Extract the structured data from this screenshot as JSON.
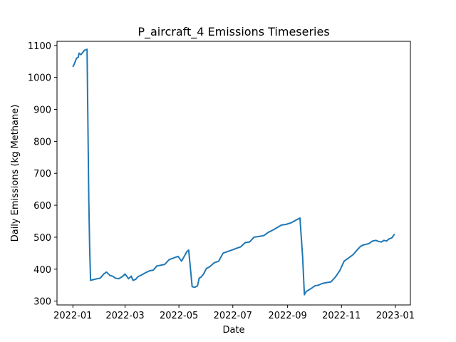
{
  "chart_data": {
    "type": "line",
    "title": "P_aircraft_4 Emissions Timeseries",
    "xlabel": "Date",
    "ylabel": "Daily Emissions (kg Methane)",
    "xlim": [
      "2021-12-14",
      "2023-01-18"
    ],
    "ylim": [
      288,
      1113
    ],
    "x_ticks": [
      "2022-01",
      "2022-03",
      "2022-05",
      "2022-07",
      "2022-09",
      "2022-11",
      "2023-01"
    ],
    "y_ticks": [
      300,
      400,
      500,
      600,
      700,
      800,
      900,
      1000,
      1100
    ],
    "grid": false,
    "line_color": "#1f77b4",
    "series": [
      {
        "x": [
          "2022-01-01",
          "2022-01-03",
          "2022-01-05",
          "2022-01-07",
          "2022-01-08",
          "2022-01-10",
          "2022-01-12",
          "2022-01-14",
          "2022-01-16",
          "2022-01-17",
          "2022-01-19",
          "2022-01-20",
          "2022-01-21",
          "2022-01-25",
          "2022-02-01",
          "2022-02-05",
          "2022-02-08",
          "2022-02-12",
          "2022-02-15",
          "2022-02-18",
          "2022-02-22",
          "2022-02-26",
          "2022-03-01",
          "2022-03-05",
          "2022-03-08",
          "2022-03-10",
          "2022-03-13",
          "2022-03-16",
          "2022-03-20",
          "2022-03-25",
          "2022-03-29",
          "2022-04-02",
          "2022-04-06",
          "2022-04-10",
          "2022-04-15",
          "2022-04-20",
          "2022-04-25",
          "2022-04-30",
          "2022-05-04",
          "2022-05-08",
          "2022-05-10",
          "2022-05-12",
          "2022-05-16",
          "2022-05-19",
          "2022-05-22",
          "2022-05-24",
          "2022-05-26",
          "2022-05-29",
          "2022-06-01",
          "2022-06-05",
          "2022-06-10",
          "2022-06-15",
          "2022-06-20",
          "2022-06-25",
          "2022-06-30",
          "2022-07-05",
          "2022-07-10",
          "2022-07-15",
          "2022-07-20",
          "2022-07-25",
          "2022-07-30",
          "2022-08-05",
          "2022-08-10",
          "2022-08-15",
          "2022-08-20",
          "2022-08-25",
          "2022-08-30",
          "2022-09-05",
          "2022-09-10",
          "2022-09-15",
          "2022-09-18",
          "2022-09-20",
          "2022-09-22",
          "2022-09-25",
          "2022-09-28",
          "2022-10-02",
          "2022-10-06",
          "2022-10-10",
          "2022-10-15",
          "2022-10-20",
          "2022-10-25",
          "2022-10-30",
          "2022-11-04",
          "2022-11-09",
          "2022-11-14",
          "2022-11-18",
          "2022-11-22",
          "2022-11-25",
          "2022-11-29",
          "2022-12-02",
          "2022-12-06",
          "2022-12-10",
          "2022-12-13",
          "2022-12-16",
          "2022-12-19",
          "2022-12-22",
          "2022-12-25",
          "2022-12-28",
          "2022-12-31"
        ],
        "values": [
          1033,
          1045,
          1060,
          1063,
          1076,
          1071,
          1078,
          1085,
          1087,
          1088,
          620,
          460,
          365,
          368,
          372,
          385,
          391,
          380,
          378,
          372,
          370,
          377,
          385,
          370,
          378,
          365,
          368,
          377,
          382,
          390,
          395,
          397,
          410,
          412,
          415,
          430,
          435,
          440,
          425,
          445,
          455,
          460,
          345,
          343,
          348,
          372,
          375,
          385,
          402,
          408,
          420,
          425,
          450,
          455,
          460,
          465,
          470,
          483,
          485,
          500,
          502,
          505,
          515,
          522,
          530,
          538,
          540,
          545,
          553,
          560,
          440,
          320,
          330,
          335,
          340,
          348,
          350,
          355,
          358,
          360,
          375,
          395,
          425,
          435,
          445,
          458,
          470,
          475,
          478,
          480,
          488,
          490,
          487,
          485,
          490,
          488,
          495,
          498,
          510
        ]
      }
    ]
  }
}
